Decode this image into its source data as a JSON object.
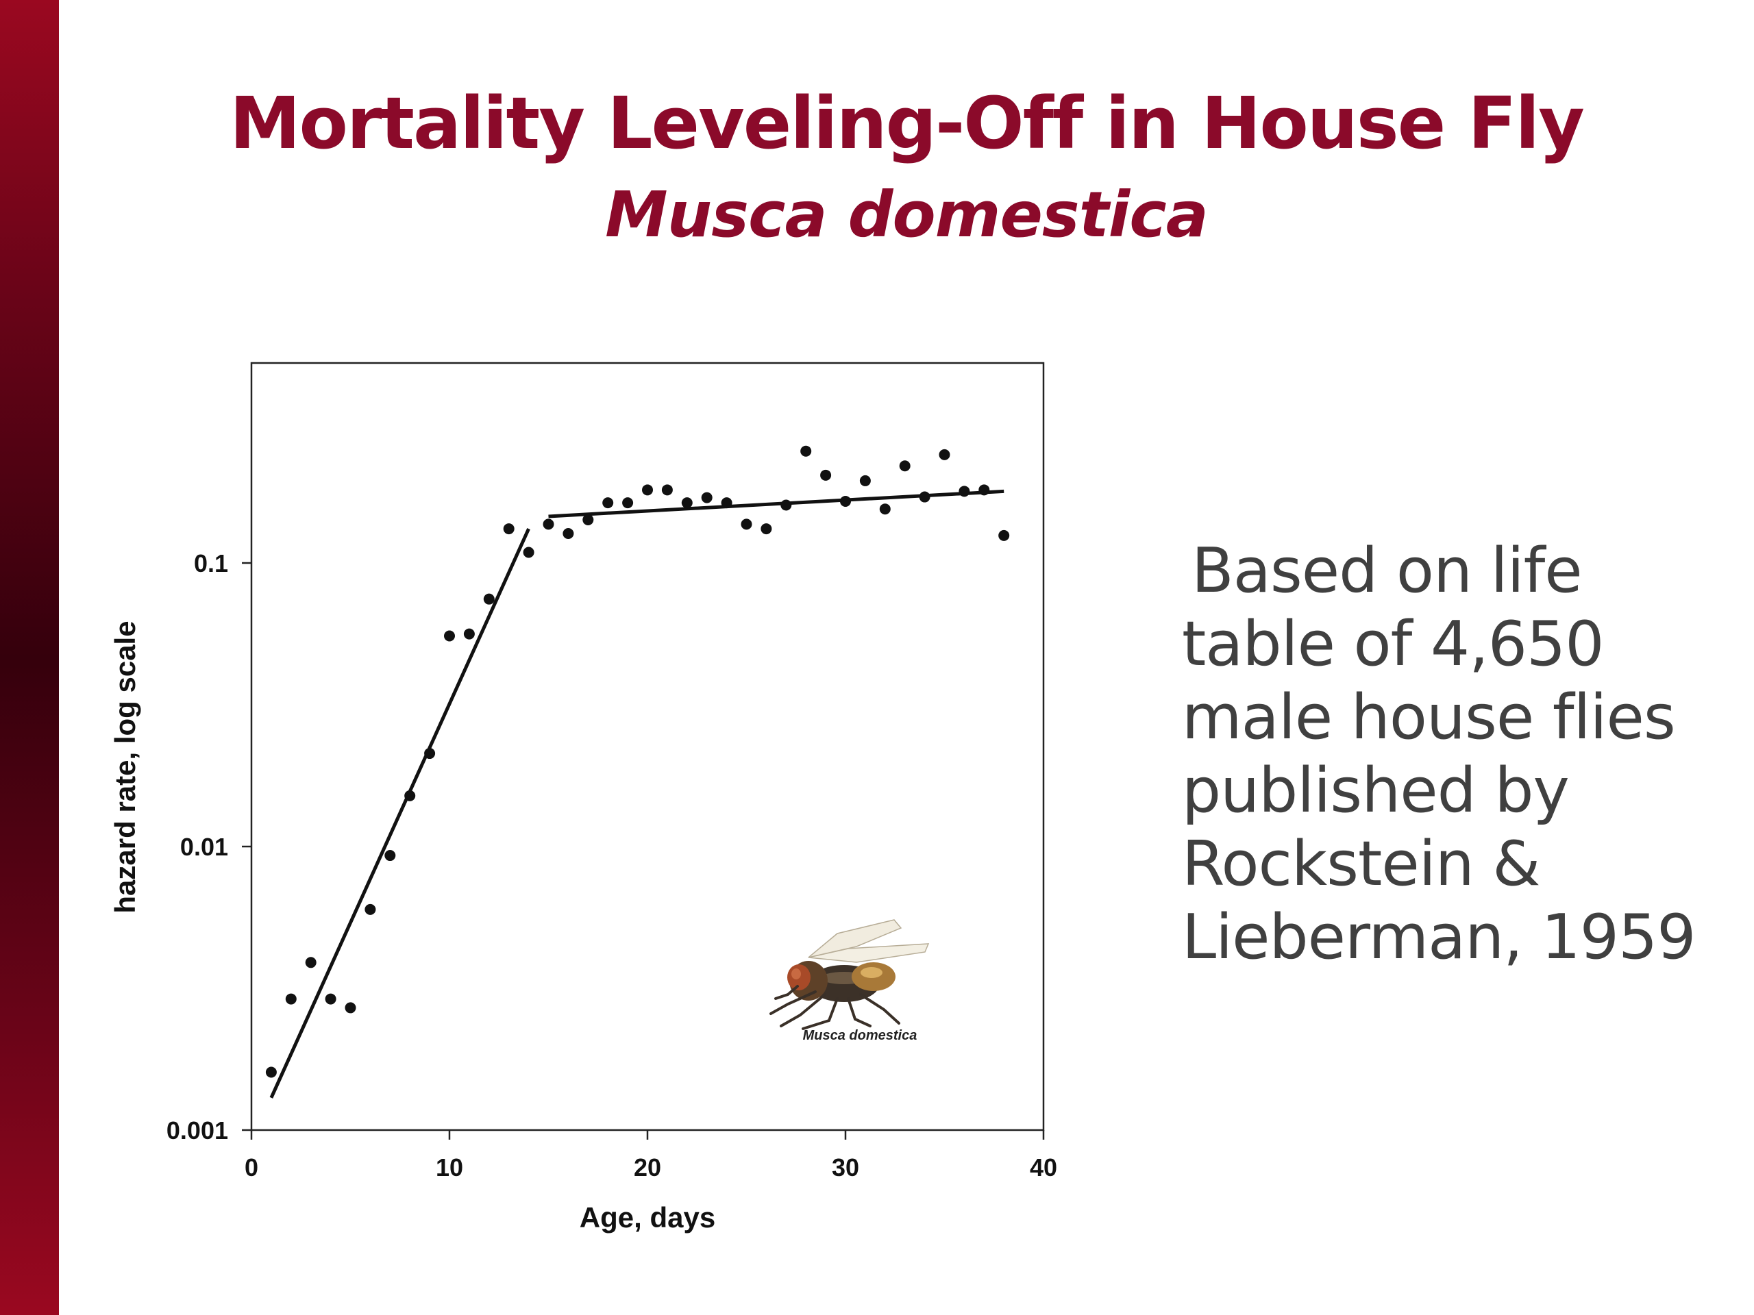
{
  "slide": {
    "title": "Mortality Leveling-Off in House Fly",
    "subtitle": "Musca domestica",
    "body_lines": [
      "Based on life",
      "table of 4,650",
      "male house flies",
      "published by",
      "Rockstein &",
      "Lieberman, 1959"
    ],
    "accent_color": "#8b0a2a",
    "sidebar_color": "#6a0418"
  },
  "chart_data": {
    "type": "scatter",
    "title": "",
    "xlabel": "Age, days",
    "ylabel": "hazard rate, log scale",
    "xlim": [
      0,
      40
    ],
    "ylim": [
      0.001,
      0.5
    ],
    "y_scale": "log",
    "x_ticks": [
      "0",
      "10",
      "20",
      "30",
      "40"
    ],
    "x_tick_values": [
      0,
      10,
      20,
      30,
      40
    ],
    "y_ticks": [
      "0.001",
      "0.01",
      "0.1"
    ],
    "y_tick_values": [
      0.001,
      0.01,
      0.1
    ],
    "grid": false,
    "inset_image_caption": "Musca domestica",
    "points": [
      [
        1,
        0.0016
      ],
      [
        2,
        0.0029
      ],
      [
        3,
        0.0039
      ],
      [
        4,
        0.0029
      ],
      [
        5,
        0.0027
      ],
      [
        6,
        0.006
      ],
      [
        7,
        0.0093
      ],
      [
        8,
        0.0151
      ],
      [
        9,
        0.0213
      ],
      [
        10,
        0.0553
      ],
      [
        11,
        0.0562
      ],
      [
        12,
        0.0746
      ],
      [
        13,
        0.132
      ],
      [
        14,
        0.109
      ],
      [
        15,
        0.137
      ],
      [
        16,
        0.127
      ],
      [
        17,
        0.142
      ],
      [
        18,
        0.163
      ],
      [
        19,
        0.163
      ],
      [
        20,
        0.181
      ],
      [
        21,
        0.181
      ],
      [
        22,
        0.163
      ],
      [
        23,
        0.17
      ],
      [
        24,
        0.163
      ],
      [
        25,
        0.137
      ],
      [
        26,
        0.132
      ],
      [
        27,
        0.16
      ],
      [
        28,
        0.248
      ],
      [
        29,
        0.204
      ],
      [
        30,
        0.165
      ],
      [
        31,
        0.195
      ],
      [
        32,
        0.155
      ],
      [
        33,
        0.22
      ],
      [
        34,
        0.171
      ],
      [
        35,
        0.241
      ],
      [
        36,
        0.179
      ],
      [
        37,
        0.181
      ],
      [
        38,
        0.125
      ]
    ],
    "trend_lines": [
      {
        "x": [
          1,
          14
        ],
        "y": [
          0.0013,
          0.132
        ]
      },
      {
        "x": [
          15,
          38
        ],
        "y": [
          0.146,
          0.179
        ]
      }
    ]
  }
}
